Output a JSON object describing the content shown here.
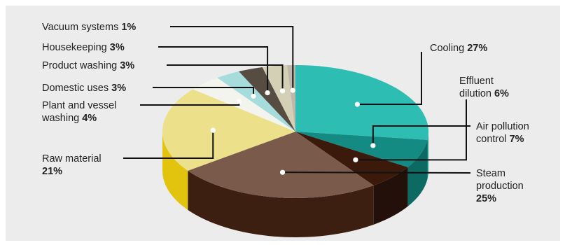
{
  "chart_data": {
    "type": "pie",
    "title": "",
    "series": [
      {
        "label": "Cooling",
        "value": 27,
        "color": "#2ebdb3",
        "side": "#1f9e95"
      },
      {
        "label": "Steam production",
        "value": 25,
        "color": "#7a5a4a",
        "side": "#3d1f12"
      },
      {
        "label": "Raw material",
        "value": 21,
        "color": "#ece08a",
        "side": "#e2c40e"
      },
      {
        "label": "Plant and vessel washing",
        "value": 4,
        "color": "#f4f4ee",
        "side": "#d8d8d0"
      },
      {
        "label": "Domestic uses",
        "value": 3,
        "color": "#a6dcdc",
        "side": "#7fc1c1"
      },
      {
        "label": "Housekeeping",
        "value": 3,
        "color": "#564c42",
        "side": "#3a322a"
      },
      {
        "label": "Product washing",
        "value": 3,
        "color": "#d4d0b6",
        "side": "#b0ac92"
      },
      {
        "label": "Vacuum systems",
        "value": 1,
        "color": "#bdb7ac",
        "side": "#9a9489"
      },
      {
        "label": "Effluent dilution",
        "value": 6,
        "color": "#3b1a0c",
        "side": "#24100a"
      },
      {
        "label": "Air pollution control",
        "value": 7,
        "color": "#138a82",
        "side": "#0d6a63"
      }
    ],
    "labels": [
      {
        "lines": [
          "Vacuum systems ",
          "1%"
        ]
      },
      {
        "lines": [
          "Housekeeping ",
          "3%"
        ]
      },
      {
        "lines": [
          "Product washing ",
          "3%"
        ]
      },
      {
        "lines": [
          "Domestic uses ",
          "3%"
        ]
      },
      {
        "lines": [
          "Plant and vessel",
          "washing ",
          "4%"
        ]
      },
      {
        "lines": [
          "Raw material",
          "21%"
        ]
      },
      {
        "lines": [
          "Cooling ",
          "27%"
        ]
      },
      {
        "lines": [
          "Effluent",
          "dilution ",
          "6%"
        ]
      },
      {
        "lines": [
          "Air pollution",
          "control ",
          "7%"
        ]
      },
      {
        "lines": [
          "Steam",
          "production",
          "25%"
        ]
      }
    ]
  }
}
